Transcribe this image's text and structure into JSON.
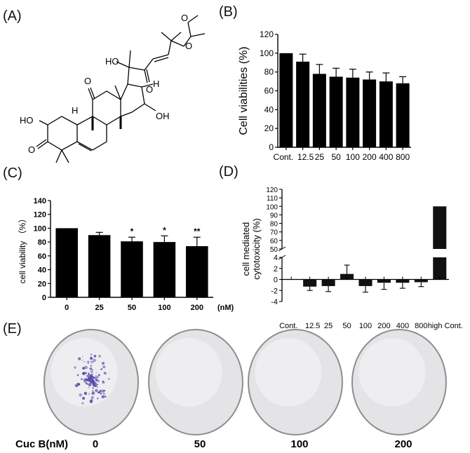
{
  "panels": {
    "A": {
      "label": "(A)"
    },
    "B": {
      "label": "(B)"
    },
    "C": {
      "label": "(C)"
    },
    "D": {
      "label": "(D)"
    },
    "E": {
      "label": "(E)"
    }
  },
  "structure_labels": {
    "ho_left": "HO",
    "o_left": "O",
    "h_ring": "H",
    "o_top": "O",
    "ho_side": "HO",
    "h_right": "H",
    "o_ketone": "O",
    "o_ester": "O",
    "o_carbonyl": "O",
    "oh_right": "OH"
  },
  "colonies": {
    "row_label": "Cuc B(nM)",
    "doses": [
      "0",
      "50",
      "100",
      "200"
    ],
    "colony_color": "#5a4fb0"
  },
  "chart_data": [
    {
      "panel": "B",
      "type": "bar",
      "categories": [
        "Cont.",
        "12.5",
        "25",
        "50",
        "100",
        "200",
        "400",
        "800"
      ],
      "values": [
        100,
        91,
        78,
        75,
        74,
        72,
        70,
        68
      ],
      "errors": [
        0,
        8,
        10,
        9,
        9,
        8,
        9,
        7
      ],
      "ylabel": "Cell viabilities (%)",
      "ylim": [
        0,
        120
      ],
      "yticks": [
        0,
        20,
        40,
        60,
        80,
        100,
        120
      ],
      "bar_color": "#000000"
    },
    {
      "panel": "C",
      "type": "bar",
      "categories": [
        "0",
        "25",
        "50",
        "100",
        "200"
      ],
      "values": [
        100,
        90,
        81,
        80,
        74
      ],
      "errors": [
        0,
        4,
        6,
        9,
        13
      ],
      "annotations": [
        "",
        "",
        "*",
        "*",
        "**"
      ],
      "ylabel": "cell viability （%）",
      "xunit": "(nM)",
      "ylim": [
        0,
        140
      ],
      "yticks": [
        0,
        20,
        40,
        60,
        80,
        100,
        120,
        140
      ],
      "bar_color": "#000000"
    },
    {
      "panel": "D",
      "type": "bar",
      "categories": [
        "Cont.",
        "12.5",
        "25",
        "50",
        "100",
        "200",
        "400",
        "800",
        "high Cont."
      ],
      "values": [
        0,
        -1.3,
        -1.2,
        1.0,
        -1.2,
        -0.6,
        -0.6,
        -0.5,
        100
      ],
      "errors": [
        0,
        0.7,
        1.0,
        1.6,
        1.1,
        1.2,
        1.0,
        0.8,
        0
      ],
      "ylabel": "cell mediated cytotoxicity (%)",
      "ylim_lower": [
        -4,
        4
      ],
      "ylim_upper": [
        50,
        120
      ],
      "yticks_lower": [
        -4,
        -2,
        0,
        2,
        4
      ],
      "yticks_upper": [
        50,
        60,
        70,
        80,
        90,
        100,
        110,
        120
      ],
      "bar_color": "#111111"
    }
  ]
}
